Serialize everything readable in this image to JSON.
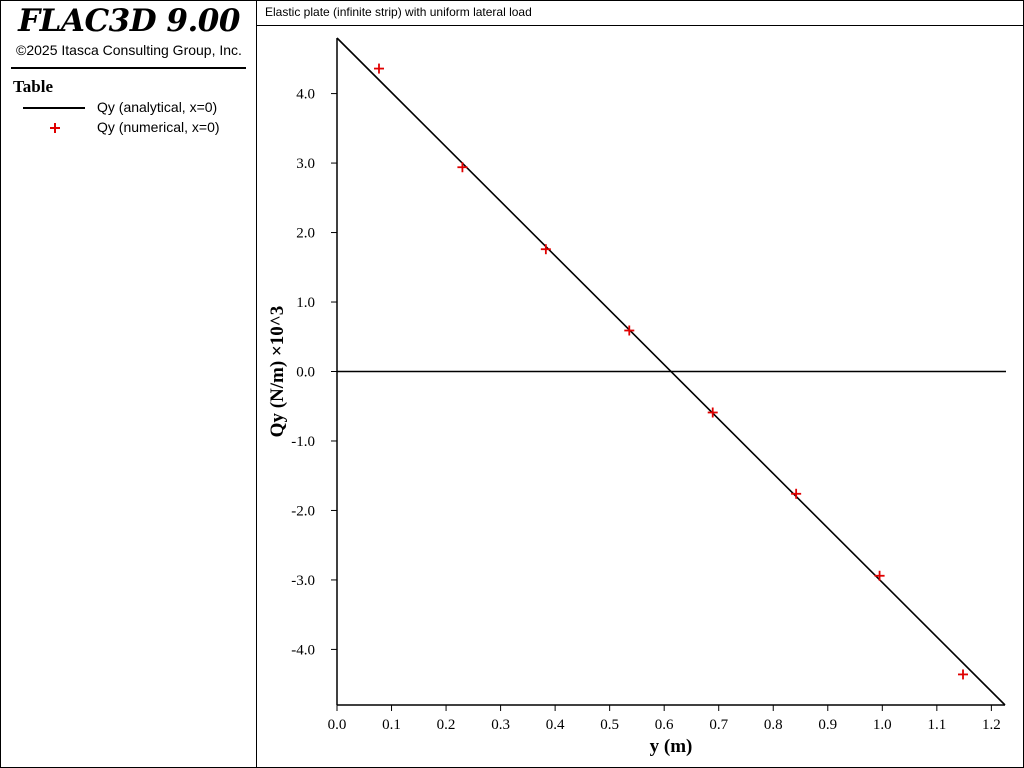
{
  "app": {
    "title": "FLAC3D 9.00",
    "copyright": "©2025 Itasca Consulting Group, Inc."
  },
  "legend": {
    "heading": "Table",
    "items": [
      {
        "label": "Qy (analytical, x=0)",
        "marker": "line",
        "color": "#000000"
      },
      {
        "label": "Qy (numerical, x=0)",
        "marker": "plus",
        "color": "#e00000"
      }
    ]
  },
  "plot": {
    "title": "Elastic plate (infinite strip) with uniform lateral load"
  },
  "chart_data": {
    "type": "scatter",
    "title": "Elastic plate (infinite strip) with uniform lateral load",
    "xlabel": "y (m)",
    "ylabel": "Qy (N/m) ×10^3",
    "xlim": [
      0.0,
      1.225
    ],
    "ylim": [
      -4.8,
      4.8
    ],
    "xticks": [
      0.0,
      0.1,
      0.2,
      0.3,
      0.4,
      0.5,
      0.6,
      0.7,
      0.8,
      0.9,
      1.0,
      1.1,
      1.2
    ],
    "xtick_labels": [
      "0.0",
      "0.1",
      "0.2",
      "0.3",
      "0.4",
      "0.5",
      "0.6",
      "0.7",
      "0.8",
      "0.9",
      "1.0",
      "1.1",
      "1.2"
    ],
    "yticks": [
      4.0,
      3.0,
      2.0,
      1.0,
      0.0,
      -1.0,
      -2.0,
      -3.0,
      -4.0
    ],
    "ytick_labels": [
      "4.0",
      "3.0",
      "2.0",
      "1.0",
      "0.0",
      "-1.0",
      "-2.0",
      "-3.0",
      "-4.0"
    ],
    "grid": false,
    "zero_line": true,
    "series": [
      {
        "name": "Qy (analytical, x=0)",
        "type": "line",
        "color": "#000000",
        "x": [
          0.0,
          1.225
        ],
        "y": [
          4.8,
          -4.8
        ]
      },
      {
        "name": "Qy (numerical, x=0)",
        "type": "scatter",
        "marker": "plus",
        "color": "#e00000",
        "x": [
          0.077,
          0.23,
          0.383,
          0.536,
          0.689,
          0.842,
          0.995,
          1.148
        ],
        "y": [
          4.36,
          2.94,
          1.76,
          0.59,
          -0.59,
          -1.76,
          -2.94,
          -4.36
        ]
      }
    ]
  }
}
